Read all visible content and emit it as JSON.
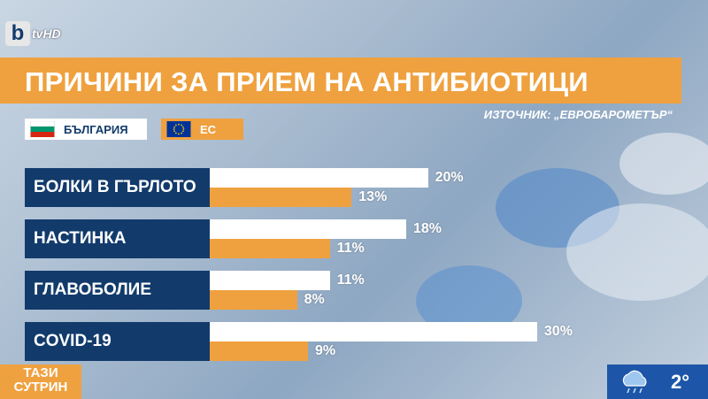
{
  "channel": {
    "logo_letter": "b",
    "logo_text": "tvHD"
  },
  "title": "ПРИЧИНИ ЗА ПРИЕМ НА АНТИБИОТИЦИ",
  "source": "ИЗТОЧНИК: „ЕВРОБАРОМЕТЪР“",
  "legend": {
    "bulgaria": "БЪЛГАРИЯ",
    "eu": "ЕС"
  },
  "chart_data": {
    "type": "bar",
    "orientation": "horizontal",
    "title": "ПРИЧИНИ ЗА ПРИЕМ НА АНТИБИОТИЦИ",
    "categories": [
      "БОЛКИ В ГЪРЛОТО",
      "НАСТИНКА",
      "ГЛАВОБОЛИЕ",
      "COVID-19"
    ],
    "series": [
      {
        "name": "БЪЛГАРИЯ",
        "values": [
          20,
          18,
          11,
          30
        ],
        "labels": [
          "20%",
          "18%",
          "11%",
          "30%"
        ],
        "color": "#ffffff"
      },
      {
        "name": "ЕС",
        "values": [
          13,
          11,
          8,
          9
        ],
        "labels": [
          "13%",
          "11%",
          "8%",
          "9%"
        ],
        "color": "#efa13f"
      }
    ],
    "unit": "%",
    "legend_position": "top-left"
  },
  "ticker": {
    "line1": "ТАЗИ",
    "line2": "СУТРИН"
  },
  "weather": {
    "icon": "cloud-rain-icon",
    "temperature": "2°"
  }
}
